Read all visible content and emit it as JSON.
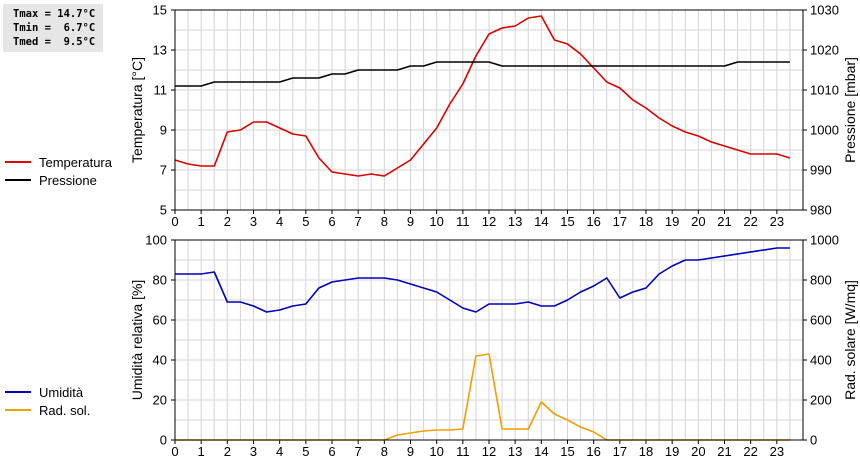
{
  "stats": {
    "tmax": "Tmax = 14.7°C",
    "tmin": "Tmin =  6.7°C",
    "tmed": "Tmed =  9.5°C"
  },
  "colors": {
    "temperature": "#dd0000",
    "pressure": "#000000",
    "humidity": "#0000bb",
    "radiation": "#f0a000",
    "grid": "#d4d4d4"
  },
  "chart_data": [
    {
      "type": "line",
      "xlim": [
        0,
        24
      ],
      "xticks": [
        "0",
        "1",
        "2",
        "3",
        "4",
        "5",
        "6",
        "7",
        "8",
        "9",
        "10",
        "11",
        "12",
        "13",
        "14",
        "15",
        "16",
        "17",
        "18",
        "19",
        "20",
        "21",
        "22",
        "23"
      ],
      "left_axis": {
        "label": "Temperatura [°C]",
        "range": [
          5,
          15
        ],
        "ticks": [
          "5",
          "7",
          "9",
          "11",
          "13",
          "15"
        ]
      },
      "right_axis": {
        "label": "Pressione [mbar]",
        "range": [
          980,
          1030
        ],
        "ticks": [
          "980",
          "990",
          "1000",
          "1010",
          "1020",
          "1030"
        ]
      },
      "grid": true,
      "legend_position": "left",
      "series": [
        {
          "name": "Temperatura",
          "axis": "left",
          "color": "#dd0000",
          "points": [
            [
              0,
              7.5
            ],
            [
              0.5,
              7.3
            ],
            [
              1,
              7.2
            ],
            [
              1.5,
              7.2
            ],
            [
              2,
              8.9
            ],
            [
              2.5,
              9.0
            ],
            [
              3,
              9.4
            ],
            [
              3.5,
              9.4
            ],
            [
              4,
              9.1
            ],
            [
              4.5,
              8.8
            ],
            [
              5,
              8.7
            ],
            [
              5.5,
              7.6
            ],
            [
              6,
              6.9
            ],
            [
              6.5,
              6.8
            ],
            [
              7,
              6.7
            ],
            [
              7.5,
              6.8
            ],
            [
              8,
              6.7
            ],
            [
              8.5,
              7.1
            ],
            [
              9,
              7.5
            ],
            [
              9.5,
              8.3
            ],
            [
              10,
              9.1
            ],
            [
              10.5,
              10.3
            ],
            [
              11,
              11.3
            ],
            [
              11.5,
              12.7
            ],
            [
              12,
              13.8
            ],
            [
              12.5,
              14.1
            ],
            [
              13,
              14.2
            ],
            [
              13.5,
              14.6
            ],
            [
              14,
              14.7
            ],
            [
              14.5,
              13.5
            ],
            [
              15,
              13.3
            ],
            [
              15.5,
              12.8
            ],
            [
              16,
              12.1
            ],
            [
              16.5,
              11.4
            ],
            [
              17,
              11.1
            ],
            [
              17.5,
              10.5
            ],
            [
              18,
              10.1
            ],
            [
              18.5,
              9.6
            ],
            [
              19,
              9.2
            ],
            [
              19.5,
              8.9
            ],
            [
              20,
              8.7
            ],
            [
              20.5,
              8.4
            ],
            [
              21,
              8.2
            ],
            [
              21.5,
              8.0
            ],
            [
              22,
              7.8
            ],
            [
              22.5,
              7.8
            ],
            [
              23,
              7.8
            ],
            [
              23.5,
              7.6
            ]
          ]
        },
        {
          "name": "Pressione",
          "axis": "right",
          "color": "#000000",
          "points": [
            [
              0,
              1011
            ],
            [
              1,
              1011
            ],
            [
              1.5,
              1012
            ],
            [
              4,
              1012
            ],
            [
              4.5,
              1013
            ],
            [
              5.5,
              1013
            ],
            [
              6,
              1014
            ],
            [
              6.5,
              1014
            ],
            [
              7,
              1015
            ],
            [
              8.5,
              1015
            ],
            [
              9,
              1016
            ],
            [
              9.5,
              1016
            ],
            [
              10,
              1017
            ],
            [
              12,
              1017
            ],
            [
              12.5,
              1016
            ],
            [
              21,
              1016
            ],
            [
              21.5,
              1017
            ],
            [
              23.5,
              1017
            ]
          ]
        }
      ]
    },
    {
      "type": "line",
      "xlim": [
        0,
        24
      ],
      "xticks": [
        "0",
        "1",
        "2",
        "3",
        "4",
        "5",
        "6",
        "7",
        "8",
        "9",
        "10",
        "11",
        "12",
        "13",
        "14",
        "15",
        "16",
        "17",
        "18",
        "19",
        "20",
        "21",
        "22",
        "23"
      ],
      "left_axis": {
        "label": "Umidità relativa [%]",
        "range": [
          0,
          100
        ],
        "ticks": [
          "0",
          "20",
          "40",
          "60",
          "80",
          "100"
        ]
      },
      "right_axis": {
        "label": "Rad. solare [W/mq]",
        "range": [
          0,
          1000
        ],
        "ticks": [
          "0",
          "200",
          "400",
          "600",
          "800",
          "1000"
        ]
      },
      "grid": true,
      "legend_position": "left",
      "series": [
        {
          "name": "Umidità",
          "axis": "left",
          "color": "#0000bb",
          "points": [
            [
              0,
              83
            ],
            [
              1,
              83
            ],
            [
              1.5,
              84
            ],
            [
              2,
              69
            ],
            [
              2.5,
              69
            ],
            [
              3,
              67
            ],
            [
              3.5,
              64
            ],
            [
              4,
              65
            ],
            [
              4.5,
              67
            ],
            [
              5,
              68
            ],
            [
              5.5,
              76
            ],
            [
              6,
              79
            ],
            [
              6.5,
              80
            ],
            [
              7,
              81
            ],
            [
              8,
              81
            ],
            [
              8.5,
              80
            ],
            [
              9,
              78
            ],
            [
              9.5,
              76
            ],
            [
              10,
              74
            ],
            [
              10.5,
              70
            ],
            [
              11,
              66
            ],
            [
              11.5,
              64
            ],
            [
              12,
              68
            ],
            [
              12.5,
              68
            ],
            [
              13,
              68
            ],
            [
              13.5,
              69
            ],
            [
              14,
              67
            ],
            [
              14.5,
              67
            ],
            [
              15,
              70
            ],
            [
              15.5,
              74
            ],
            [
              16,
              77
            ],
            [
              16.5,
              81
            ],
            [
              17,
              71
            ],
            [
              17.5,
              74
            ],
            [
              18,
              76
            ],
            [
              18.5,
              83
            ],
            [
              19,
              87
            ],
            [
              19.5,
              90
            ],
            [
              20,
              90
            ],
            [
              23,
              96
            ],
            [
              23.5,
              96
            ]
          ]
        },
        {
          "name": "Rad. sol.",
          "axis": "right",
          "color": "#f0a000",
          "points": [
            [
              0,
              0
            ],
            [
              8,
              0
            ],
            [
              8.5,
              25
            ],
            [
              9,
              35
            ],
            [
              9.5,
              45
            ],
            [
              10,
              50
            ],
            [
              10.5,
              50
            ],
            [
              11,
              55
            ],
            [
              11.5,
              420
            ],
            [
              12,
              430
            ],
            [
              12.5,
              55
            ],
            [
              13,
              55
            ],
            [
              13.5,
              55
            ],
            [
              14,
              190
            ],
            [
              14.5,
              130
            ],
            [
              15,
              100
            ],
            [
              15.5,
              65
            ],
            [
              16,
              40
            ],
            [
              16.5,
              0
            ],
            [
              23.5,
              0
            ]
          ]
        }
      ]
    }
  ]
}
